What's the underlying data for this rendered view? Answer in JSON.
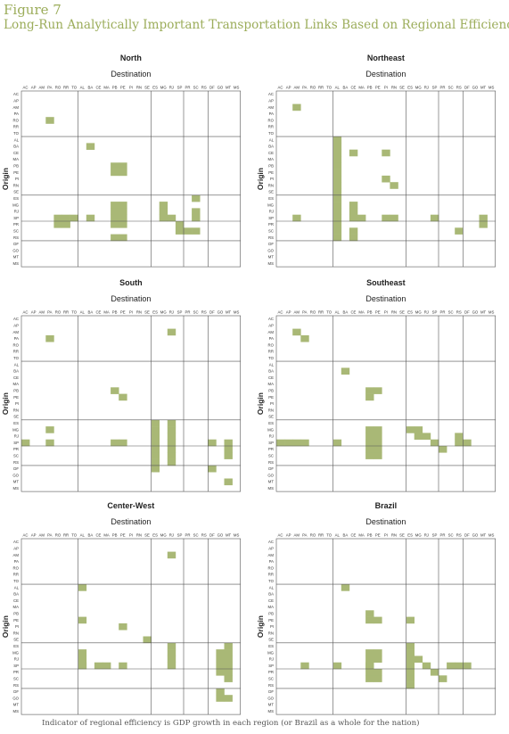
{
  "figure": {
    "label": "Figure 7",
    "title": "Long-Run Analytically Important Transportation Links Based on Regional Efficiency",
    "footnote": "Indicator of regional efficiency is GDP growth in each region (or Brazil as a whole for the nation)",
    "accent_color": "#9cad5b",
    "cell_color": "#a9b876"
  },
  "chart_data": {
    "type": "heatmap",
    "states": [
      "AC",
      "AP",
      "AM",
      "PA",
      "RO",
      "RR",
      "TO",
      "AL",
      "BA",
      "CE",
      "MA",
      "PB",
      "PE",
      "PI",
      "RN",
      "SE",
      "ES",
      "MG",
      "RJ",
      "SP",
      "PR",
      "SC",
      "RS",
      "DF",
      "GO",
      "MT",
      "MS"
    ],
    "region_breaks_after": [
      "TO",
      "SE",
      "SP",
      "RS"
    ],
    "x_axis_label": "Destination",
    "y_axis_label": "Origin",
    "panels": [
      {
        "title": "North",
        "cells": [
          [
            "RO",
            "PA"
          ],
          [
            "BA",
            "BA"
          ],
          [
            "PB",
            "PE"
          ],
          [
            "PB",
            "PB"
          ],
          [
            "PE",
            "PB"
          ],
          [
            "PE",
            "PE"
          ],
          [
            "SP",
            "RO"
          ],
          [
            "SP",
            "RR"
          ],
          [
            "SP",
            "TO"
          ],
          [
            "SP",
            "BA"
          ],
          [
            "SP",
            "PB"
          ],
          [
            "SP",
            "PE"
          ],
          [
            "SP",
            "MG"
          ],
          [
            "SP",
            "RJ"
          ],
          [
            "SP",
            "SC"
          ],
          [
            "PR",
            "RO"
          ],
          [
            "PR",
            "RR"
          ],
          [
            "PR",
            "PB"
          ],
          [
            "PR",
            "PE"
          ],
          [
            "PR",
            "SP"
          ],
          [
            "RJ",
            "PB"
          ],
          [
            "RJ",
            "PE"
          ],
          [
            "RJ",
            "MG"
          ],
          [
            "RJ",
            "SC"
          ],
          [
            "MG",
            "PB"
          ],
          [
            "MG",
            "PE"
          ],
          [
            "MG",
            "MG"
          ],
          [
            "SC",
            "SP"
          ],
          [
            "SC",
            "PR"
          ],
          [
            "SC",
            "SC"
          ],
          [
            "RS",
            "PB"
          ],
          [
            "RS",
            "PE"
          ],
          [
            "ES",
            "SC"
          ]
        ]
      },
      {
        "title": "Northeast",
        "cells": [
          [
            "AM",
            "AM"
          ],
          [
            "AL",
            "AL"
          ],
          [
            "BA",
            "AL"
          ],
          [
            "CE",
            "AL"
          ],
          [
            "MA",
            "AL"
          ],
          [
            "PB",
            "AL"
          ],
          [
            "PE",
            "AL"
          ],
          [
            "PI",
            "AL"
          ],
          [
            "RN",
            "AL"
          ],
          [
            "SE",
            "AL"
          ],
          [
            "ES",
            "AL"
          ],
          [
            "MG",
            "AL"
          ],
          [
            "RJ",
            "AL"
          ],
          [
            "SP",
            "AL"
          ],
          [
            "PR",
            "AL"
          ],
          [
            "SC",
            "AL"
          ],
          [
            "RS",
            "AL"
          ],
          [
            "CE",
            "CE"
          ],
          [
            "CE",
            "PI"
          ],
          [
            "PI",
            "PI"
          ],
          [
            "RN",
            "RN"
          ],
          [
            "MG",
            "CE"
          ],
          [
            "RJ",
            "CE"
          ],
          [
            "SP",
            "CE"
          ],
          [
            "SP",
            "MA"
          ],
          [
            "SC",
            "CE"
          ],
          [
            "RS",
            "CE"
          ],
          [
            "SP",
            "AM"
          ],
          [
            "SP",
            "PI"
          ],
          [
            "SP",
            "RN"
          ],
          [
            "SP",
            "SP"
          ],
          [
            "SP",
            "MT"
          ],
          [
            "PR",
            "MT"
          ],
          [
            "SC",
            "RS"
          ]
        ]
      },
      {
        "title": "South",
        "cells": [
          [
            "PA",
            "PA"
          ],
          [
            "AM",
            "RJ"
          ],
          [
            "PB",
            "PB"
          ],
          [
            "PE",
            "PE"
          ],
          [
            "MG",
            "PA"
          ],
          [
            "SP",
            "AC"
          ],
          [
            "SP",
            "PA"
          ],
          [
            "SP",
            "PB"
          ],
          [
            "SP",
            "PE"
          ],
          [
            "ES",
            "ES"
          ],
          [
            "MG",
            "ES"
          ],
          [
            "RJ",
            "ES"
          ],
          [
            "SP",
            "ES"
          ],
          [
            "PR",
            "ES"
          ],
          [
            "SC",
            "ES"
          ],
          [
            "RS",
            "ES"
          ],
          [
            "DF",
            "ES"
          ],
          [
            "ES",
            "RJ"
          ],
          [
            "MG",
            "RJ"
          ],
          [
            "RJ",
            "RJ"
          ],
          [
            "SP",
            "RJ"
          ],
          [
            "PR",
            "RJ"
          ],
          [
            "SC",
            "RJ"
          ],
          [
            "RS",
            "RJ"
          ],
          [
            "SP",
            "DF"
          ],
          [
            "SP",
            "MT"
          ],
          [
            "PR",
            "MT"
          ],
          [
            "SC",
            "MT"
          ],
          [
            "DF",
            "DF"
          ],
          [
            "MT",
            "MT"
          ]
        ]
      },
      {
        "title": "Southeast",
        "cells": [
          [
            "AM",
            "AM"
          ],
          [
            "PA",
            "PA"
          ],
          [
            "BA",
            "BA"
          ],
          [
            "PB",
            "PB"
          ],
          [
            "PB",
            "PE"
          ],
          [
            "PE",
            "PB"
          ],
          [
            "MG",
            "PB"
          ],
          [
            "MG",
            "PE"
          ],
          [
            "RJ",
            "PB"
          ],
          [
            "RJ",
            "PE"
          ],
          [
            "SP",
            "PB"
          ],
          [
            "SP",
            "PE"
          ],
          [
            "PR",
            "PB"
          ],
          [
            "PR",
            "PE"
          ],
          [
            "SC",
            "PB"
          ],
          [
            "SC",
            "PE"
          ],
          [
            "SP",
            "AC"
          ],
          [
            "SP",
            "AP"
          ],
          [
            "SP",
            "AM"
          ],
          [
            "SP",
            "PA"
          ],
          [
            "SP",
            "AL"
          ],
          [
            "MG",
            "ES"
          ],
          [
            "MG",
            "MG"
          ],
          [
            "RJ",
            "MG"
          ],
          [
            "RJ",
            "RJ"
          ],
          [
            "SP",
            "SP"
          ],
          [
            "PR",
            "PR"
          ],
          [
            "RJ",
            "RS"
          ],
          [
            "SP",
            "RS"
          ],
          [
            "SP",
            "DF"
          ]
        ]
      },
      {
        "title": "Center-West",
        "cells": [
          [
            "AM",
            "RJ"
          ],
          [
            "AL",
            "AL"
          ],
          [
            "PE",
            "AL"
          ],
          [
            "PI",
            "PE"
          ],
          [
            "SE",
            "SE"
          ],
          [
            "MG",
            "AL"
          ],
          [
            "SP",
            "AL"
          ],
          [
            "SP",
            "AL"
          ],
          [
            "RJ",
            "AL"
          ],
          [
            "SP",
            "CE"
          ],
          [
            "SP",
            "MA"
          ],
          [
            "SP",
            "PE"
          ],
          [
            "ES",
            "RJ"
          ],
          [
            "MG",
            "RJ"
          ],
          [
            "RJ",
            "RJ"
          ],
          [
            "SP",
            "RJ"
          ],
          [
            "MG",
            "MT"
          ],
          [
            "ES",
            "MT"
          ],
          [
            "MG",
            "GO"
          ],
          [
            "RJ",
            "GO"
          ],
          [
            "RJ",
            "MT"
          ],
          [
            "SP",
            "GO"
          ],
          [
            "SP",
            "MT"
          ],
          [
            "PR",
            "GO"
          ],
          [
            "PR",
            "MT"
          ],
          [
            "SC",
            "MT"
          ],
          [
            "DF",
            "GO"
          ],
          [
            "GO",
            "GO"
          ],
          [
            "GO",
            "MT"
          ]
        ]
      },
      {
        "title": "Brazil",
        "cells": [
          [
            "AL",
            "BA"
          ],
          [
            "PB",
            "PB"
          ],
          [
            "PE",
            "PB"
          ],
          [
            "PE",
            "PE"
          ],
          [
            "PE",
            "ES"
          ],
          [
            "ES",
            "ES"
          ],
          [
            "MG",
            "ES"
          ],
          [
            "RJ",
            "ES"
          ],
          [
            "SP",
            "ES"
          ],
          [
            "PR",
            "ES"
          ],
          [
            "SC",
            "ES"
          ],
          [
            "RS",
            "ES"
          ],
          [
            "MG",
            "PB"
          ],
          [
            "MG",
            "PE"
          ],
          [
            "RJ",
            "PB"
          ],
          [
            "RJ",
            "PE"
          ],
          [
            "SP",
            "PB"
          ],
          [
            "PR",
            "PB"
          ],
          [
            "PR",
            "PE"
          ],
          [
            "SC",
            "PB"
          ],
          [
            "SC",
            "PE"
          ],
          [
            "SP",
            "PA"
          ],
          [
            "SP",
            "AL"
          ],
          [
            "SP",
            "PB"
          ],
          [
            "RJ",
            "MG"
          ],
          [
            "SP",
            "RJ"
          ],
          [
            "PR",
            "SP"
          ],
          [
            "SC",
            "PR"
          ],
          [
            "SP",
            "SC"
          ],
          [
            "SP",
            "RS"
          ],
          [
            "SP",
            "DF"
          ]
        ]
      }
    ]
  }
}
